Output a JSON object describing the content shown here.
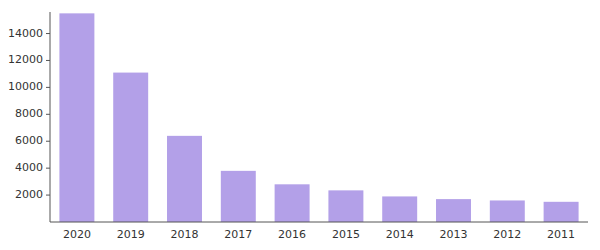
{
  "chart_data": {
    "type": "bar",
    "categories": [
      "2020",
      "2019",
      "2018",
      "2017",
      "2016",
      "2015",
      "2014",
      "2013",
      "2012",
      "2011"
    ],
    "values": [
      15500,
      11100,
      6400,
      3800,
      2800,
      2350,
      1900,
      1700,
      1600,
      1500
    ],
    "color": "#b3a0e8",
    "ylim": [
      0,
      15600
    ],
    "yticks": [
      2000,
      4000,
      6000,
      8000,
      10000,
      12000,
      14000
    ],
    "grid": false
  }
}
